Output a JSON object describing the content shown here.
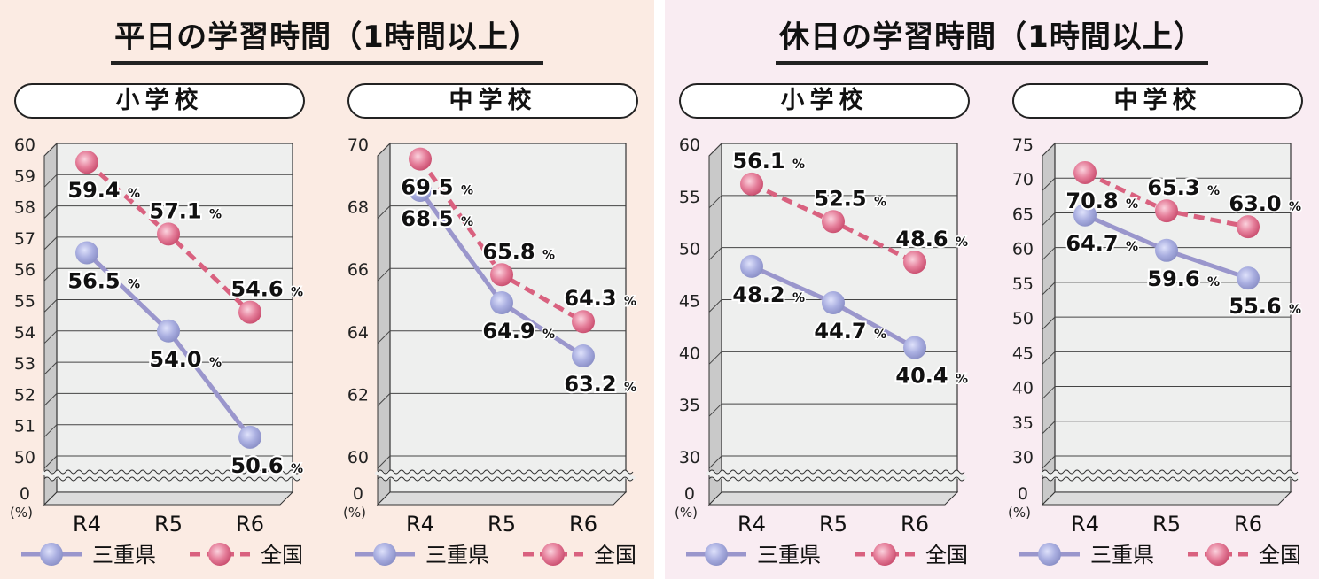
{
  "colors": {
    "left_bg": "#fbebe3",
    "right_bg": "#f9ecf2",
    "mie": "#9a96cc",
    "mie_dot": "#a9aee0",
    "national": "#d9617f",
    "national_dot": "#e57e9a",
    "plot_bg": "#eeefee",
    "side_wall": "#c9c9c9"
  },
  "legend": {
    "mie": "三重県",
    "national": "全国"
  },
  "sections": [
    {
      "title": "平日の学習時間（1時間以上）"
    },
    {
      "title": "休日の学習時間（1時間以上）"
    }
  ],
  "chart_data": [
    {
      "type": "line",
      "title": "平日の学習時間（1時間以上） 小学校",
      "subtitle": "小学校",
      "categories": [
        "R4",
        "R5",
        "R6"
      ],
      "ylabel": "(%)",
      "yticks": [
        0,
        50,
        51,
        52,
        53,
        54,
        55,
        56,
        57,
        58,
        59,
        60
      ],
      "ylim": [
        50,
        60
      ],
      "axis_break": true,
      "series": [
        {
          "name": "三重県",
          "values": [
            56.5,
            54.0,
            50.6
          ],
          "labels": [
            "56.5",
            "54.0",
            "50.6"
          ]
        },
        {
          "name": "全国",
          "values": [
            59.4,
            57.1,
            54.6
          ],
          "labels": [
            "59.4",
            "57.1",
            "54.6"
          ]
        }
      ]
    },
    {
      "type": "line",
      "title": "平日の学習時間（1時間以上） 中学校",
      "subtitle": "中学校",
      "categories": [
        "R4",
        "R5",
        "R6"
      ],
      "ylabel": "(%)",
      "yticks": [
        0,
        60,
        62,
        64,
        66,
        68,
        70
      ],
      "ylim": [
        60,
        70
      ],
      "axis_break": true,
      "series": [
        {
          "name": "三重県",
          "values": [
            68.5,
            64.9,
            63.2
          ],
          "labels": [
            "68.5",
            "64.9",
            "63.2"
          ]
        },
        {
          "name": "全国",
          "values": [
            69.5,
            65.8,
            64.3
          ],
          "labels": [
            "69.5",
            "65.8",
            "64.3"
          ]
        }
      ]
    },
    {
      "type": "line",
      "title": "休日の学習時間（1時間以上） 小学校",
      "subtitle": "小学校",
      "categories": [
        "R4",
        "R5",
        "R6"
      ],
      "ylabel": "(%)",
      "yticks": [
        0,
        30,
        35,
        40,
        45,
        50,
        55,
        60
      ],
      "ylim": [
        30,
        60
      ],
      "axis_break": true,
      "series": [
        {
          "name": "三重県",
          "values": [
            48.2,
            44.7,
            40.4
          ],
          "labels": [
            "48.2",
            "44.7",
            "40.4"
          ]
        },
        {
          "name": "全国",
          "values": [
            56.1,
            52.5,
            48.6
          ],
          "labels": [
            "56.1",
            "52.5",
            "48.6"
          ]
        }
      ]
    },
    {
      "type": "line",
      "title": "休日の学習時間（1時間以上） 中学校",
      "subtitle": "中学校",
      "categories": [
        "R4",
        "R5",
        "R6"
      ],
      "ylabel": "(%)",
      "yticks": [
        0,
        30,
        35,
        40,
        45,
        50,
        55,
        60,
        65,
        70,
        75
      ],
      "ylim": [
        30,
        75
      ],
      "axis_break": true,
      "series": [
        {
          "name": "三重県",
          "values": [
            64.7,
            59.6,
            55.6
          ],
          "labels": [
            "64.7",
            "59.6",
            "55.6"
          ]
        },
        {
          "name": "全国",
          "values": [
            70.8,
            65.3,
            63.0
          ],
          "labels": [
            "70.8",
            "65.3",
            "63.0"
          ]
        }
      ]
    }
  ]
}
